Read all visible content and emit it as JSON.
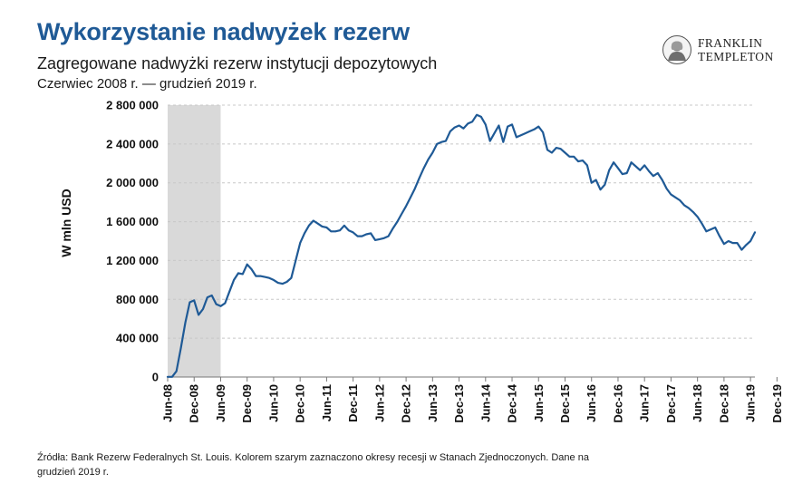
{
  "header": {
    "title": "Wykorzystanie nadwyżek rezerw",
    "subtitle": "Zagregowane nadwyżki rezerw instytucji depozytowych",
    "date_range": "Czerwiec 2008 r. — grudzień 2019 r."
  },
  "logo": {
    "line1": "FRANKLIN",
    "line2": "TEMPLETON"
  },
  "footer": {
    "source": "Źródła: Bank Rezerw Federalnych St. Louis. Kolorem szarym zaznaczono okresy recesji w Stanach Zjednoczonych. Dane na grudzień 2019 r."
  },
  "colors": {
    "title": "#1f5a96",
    "line": "#1f5a96",
    "recession": "#d9d9d9",
    "grid": "#c8c8c8"
  },
  "chart_data": {
    "type": "line",
    "title": "Zagregowane nadwyżki rezerw instytucji depozytowych",
    "xlabel": "",
    "ylabel": "W mln USD",
    "ylim": [
      0,
      2800000
    ],
    "yticks": [
      0,
      400000,
      800000,
      1200000,
      1600000,
      2000000,
      2400000,
      2800000
    ],
    "ytick_labels": [
      "0",
      "400 000",
      "800 000",
      "1 200 000",
      "1 600 000",
      "2 000 000",
      "2 400 000",
      "2 800 000"
    ],
    "xtick_labels": [
      "Jun-08",
      "Dec-08",
      "Jun-09",
      "Dec-09",
      "Jun-10",
      "Dec-10",
      "Jun-11",
      "Dec-11",
      "Jun-12",
      "Dec-12",
      "Jun-13",
      "Dec-13",
      "Jun-14",
      "Dec-14",
      "Jun-15",
      "Dec-15",
      "Jun-16",
      "Dec-16",
      "Jun-17",
      "Dec-17",
      "Jun-18",
      "Dec-18",
      "Jun-19",
      "Dec-19"
    ],
    "x_unit": "month index from Jun-08",
    "grid": true,
    "recession_shading": [
      {
        "label": "Recesja",
        "from": "Jun-08",
        "to": "Jun-09"
      }
    ],
    "series": [
      {
        "name": "Nadwyżki rezerw",
        "values": [
          2000,
          2000,
          60000,
          300000,
          560000,
          770000,
          790000,
          640000,
          700000,
          820000,
          840000,
          750000,
          730000,
          760000,
          880000,
          1000000,
          1070000,
          1060000,
          1160000,
          1110000,
          1040000,
          1040000,
          1030000,
          1020000,
          1000000,
          970000,
          960000,
          980000,
          1020000,
          1200000,
          1380000,
          1480000,
          1560000,
          1610000,
          1580000,
          1550000,
          1540000,
          1500000,
          1500000,
          1510000,
          1560000,
          1510000,
          1490000,
          1450000,
          1450000,
          1470000,
          1480000,
          1410000,
          1420000,
          1430000,
          1450000,
          1530000,
          1600000,
          1680000,
          1760000,
          1850000,
          1940000,
          2050000,
          2150000,
          2240000,
          2310000,
          2400000,
          2420000,
          2430000,
          2530000,
          2570000,
          2590000,
          2560000,
          2610000,
          2630000,
          2700000,
          2680000,
          2600000,
          2430000,
          2510000,
          2590000,
          2420000,
          2580000,
          2600000,
          2470000,
          2490000,
          2510000,
          2530000,
          2550000,
          2580000,
          2520000,
          2340000,
          2310000,
          2360000,
          2350000,
          2310000,
          2270000,
          2270000,
          2220000,
          2230000,
          2180000,
          2000000,
          2030000,
          1930000,
          1980000,
          2130000,
          2210000,
          2150000,
          2090000,
          2100000,
          2210000,
          2170000,
          2130000,
          2180000,
          2120000,
          2070000,
          2100000,
          2030000,
          1940000,
          1880000,
          1850000,
          1820000,
          1770000,
          1740000,
          1700000,
          1650000,
          1580000,
          1500000,
          1520000,
          1540000,
          1450000,
          1370000,
          1400000,
          1380000,
          1380000,
          1310000,
          1360000,
          1400000,
          1490000
        ]
      }
    ]
  }
}
